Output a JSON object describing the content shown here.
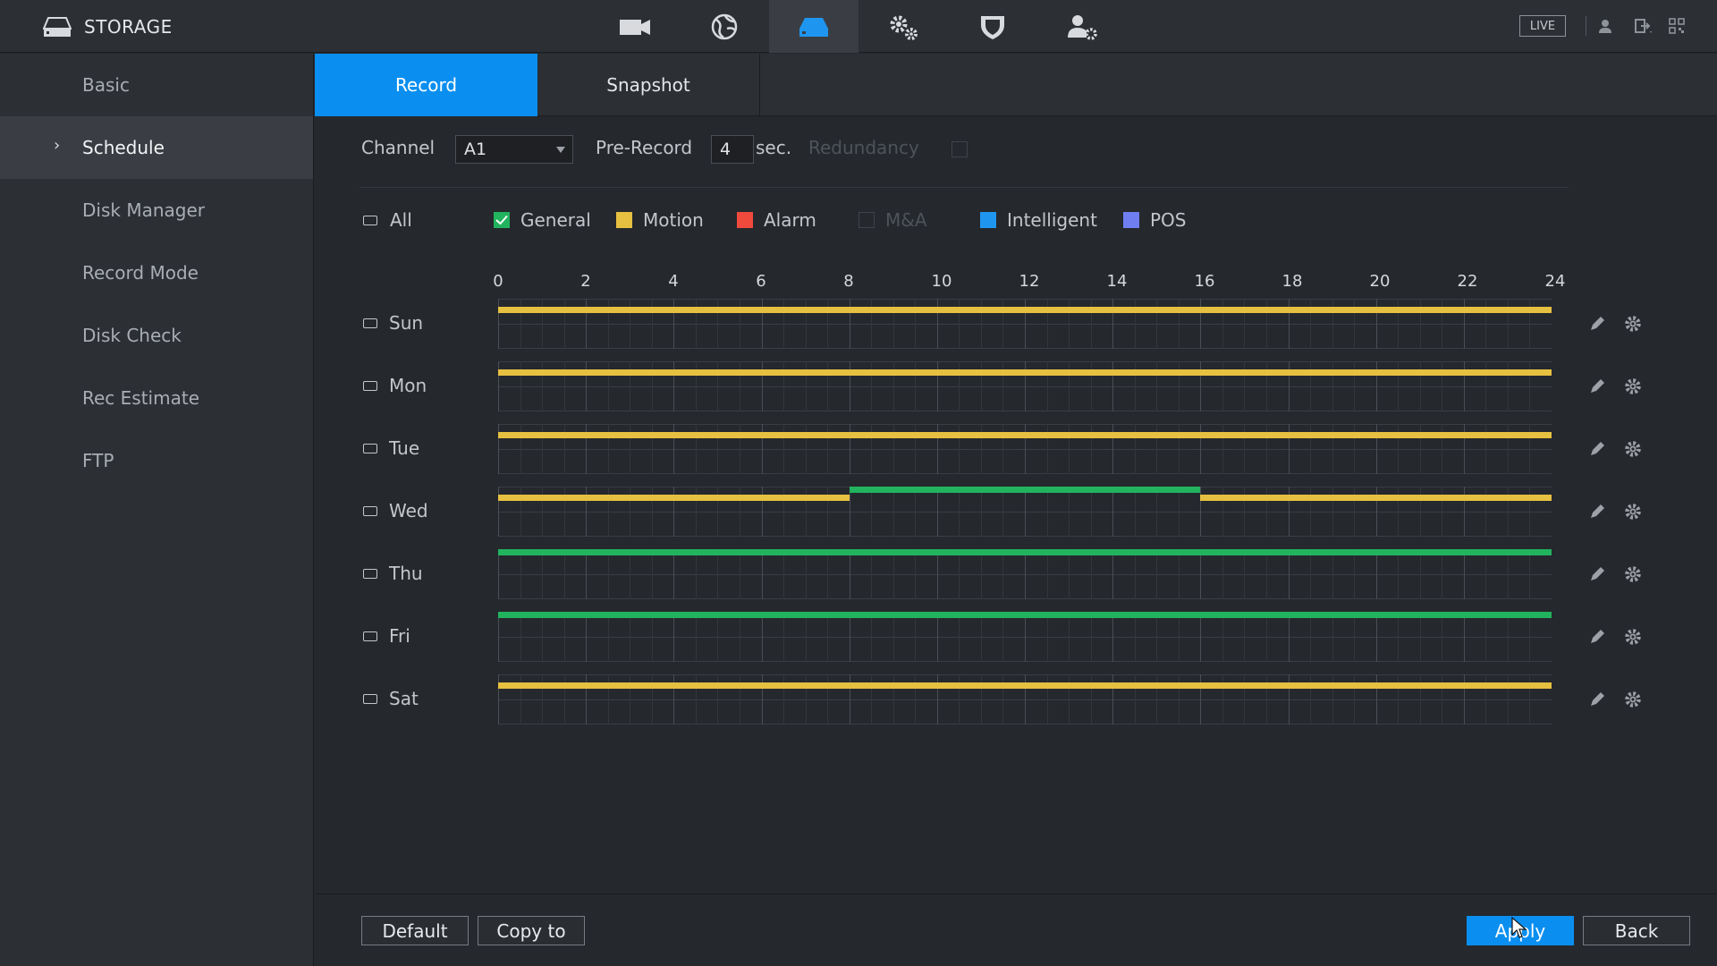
{
  "app": {
    "title": "STORAGE",
    "live_label": "LIVE"
  },
  "nav_icons": [
    "camera-icon",
    "network-icon",
    "storage-icon",
    "system-settings-icon",
    "security-shield-icon",
    "account-icon"
  ],
  "sidebar": {
    "items": [
      {
        "label": "Basic",
        "active": false
      },
      {
        "label": "Schedule",
        "active": true
      },
      {
        "label": "Disk Manager",
        "active": false
      },
      {
        "label": "Record Mode",
        "active": false
      },
      {
        "label": "Disk Check",
        "active": false
      },
      {
        "label": "Rec Estimate",
        "active": false
      },
      {
        "label": "FTP",
        "active": false
      }
    ]
  },
  "tabs": [
    {
      "label": "Record",
      "active": true
    },
    {
      "label": "Snapshot",
      "active": false
    }
  ],
  "form": {
    "channel_label": "Channel",
    "channel_value": "A1",
    "prerecord_label": "Pre-Record",
    "prerecord_value": "4",
    "prerecord_unit": "sec.",
    "redundancy_label": "Redundancy"
  },
  "legend": {
    "all_label": "All",
    "items": [
      {
        "label": "General",
        "color": "#22b35e",
        "checked": true,
        "enabled": true
      },
      {
        "label": "Motion",
        "color": "#e6c040",
        "checked": false,
        "enabled": true
      },
      {
        "label": "Alarm",
        "color": "#f04a3c",
        "checked": false,
        "enabled": true
      },
      {
        "label": "M&A",
        "color": "",
        "checked": false,
        "enabled": false
      },
      {
        "label": "Intelligent",
        "color": "#1e96f0",
        "checked": false,
        "enabled": true
      },
      {
        "label": "POS",
        "color": "#6f7ef0",
        "checked": false,
        "enabled": true
      }
    ]
  },
  "hour_labels": [
    "0",
    "2",
    "4",
    "6",
    "8",
    "10",
    "12",
    "14",
    "16",
    "18",
    "20",
    "22",
    "24"
  ],
  "schedule": [
    {
      "day": "Sun",
      "segments": [
        {
          "type": "Motion",
          "start": 0,
          "end": 24
        }
      ]
    },
    {
      "day": "Mon",
      "segments": [
        {
          "type": "Motion",
          "start": 0,
          "end": 24
        }
      ]
    },
    {
      "day": "Tue",
      "segments": [
        {
          "type": "Motion",
          "start": 0,
          "end": 24
        }
      ]
    },
    {
      "day": "Wed",
      "segments": [
        {
          "type": "Motion",
          "start": 0,
          "end": 8
        },
        {
          "type": "General",
          "start": 8,
          "end": 16
        },
        {
          "type": "Motion",
          "start": 16,
          "end": 24
        }
      ]
    },
    {
      "day": "Thu",
      "segments": [
        {
          "type": "General",
          "start": 0,
          "end": 24
        }
      ]
    },
    {
      "day": "Fri",
      "segments": [
        {
          "type": "General",
          "start": 0,
          "end": 24
        }
      ]
    },
    {
      "day": "Sat",
      "segments": [
        {
          "type": "Motion",
          "start": 0,
          "end": 24
        }
      ]
    }
  ],
  "buttons": {
    "default": "Default",
    "copy": "Copy to",
    "apply": "Apply",
    "back": "Back"
  }
}
